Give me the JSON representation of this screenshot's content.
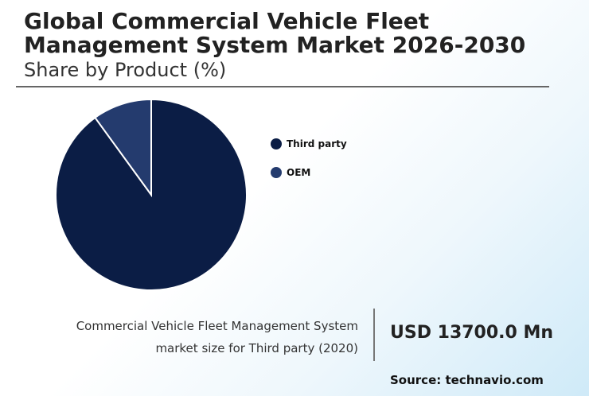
{
  "header": {
    "title": "Global Commercial Vehicle Fleet Management System Market 2026-2030",
    "subtitle": "Share by Product (%)"
  },
  "chart_data": {
    "type": "pie",
    "categories": [
      "Third party",
      "OEM"
    ],
    "values": [
      90,
      10
    ],
    "colors": [
      "#0b1d45",
      "#243b6e"
    ],
    "legend_position": "right"
  },
  "stat": {
    "caption_line1": "Commercial Vehicle Fleet Management System",
    "caption_line2": "market size for Third party (2020)",
    "value": "USD 13700.0 Mn"
  },
  "source": "Source: technavio.com"
}
